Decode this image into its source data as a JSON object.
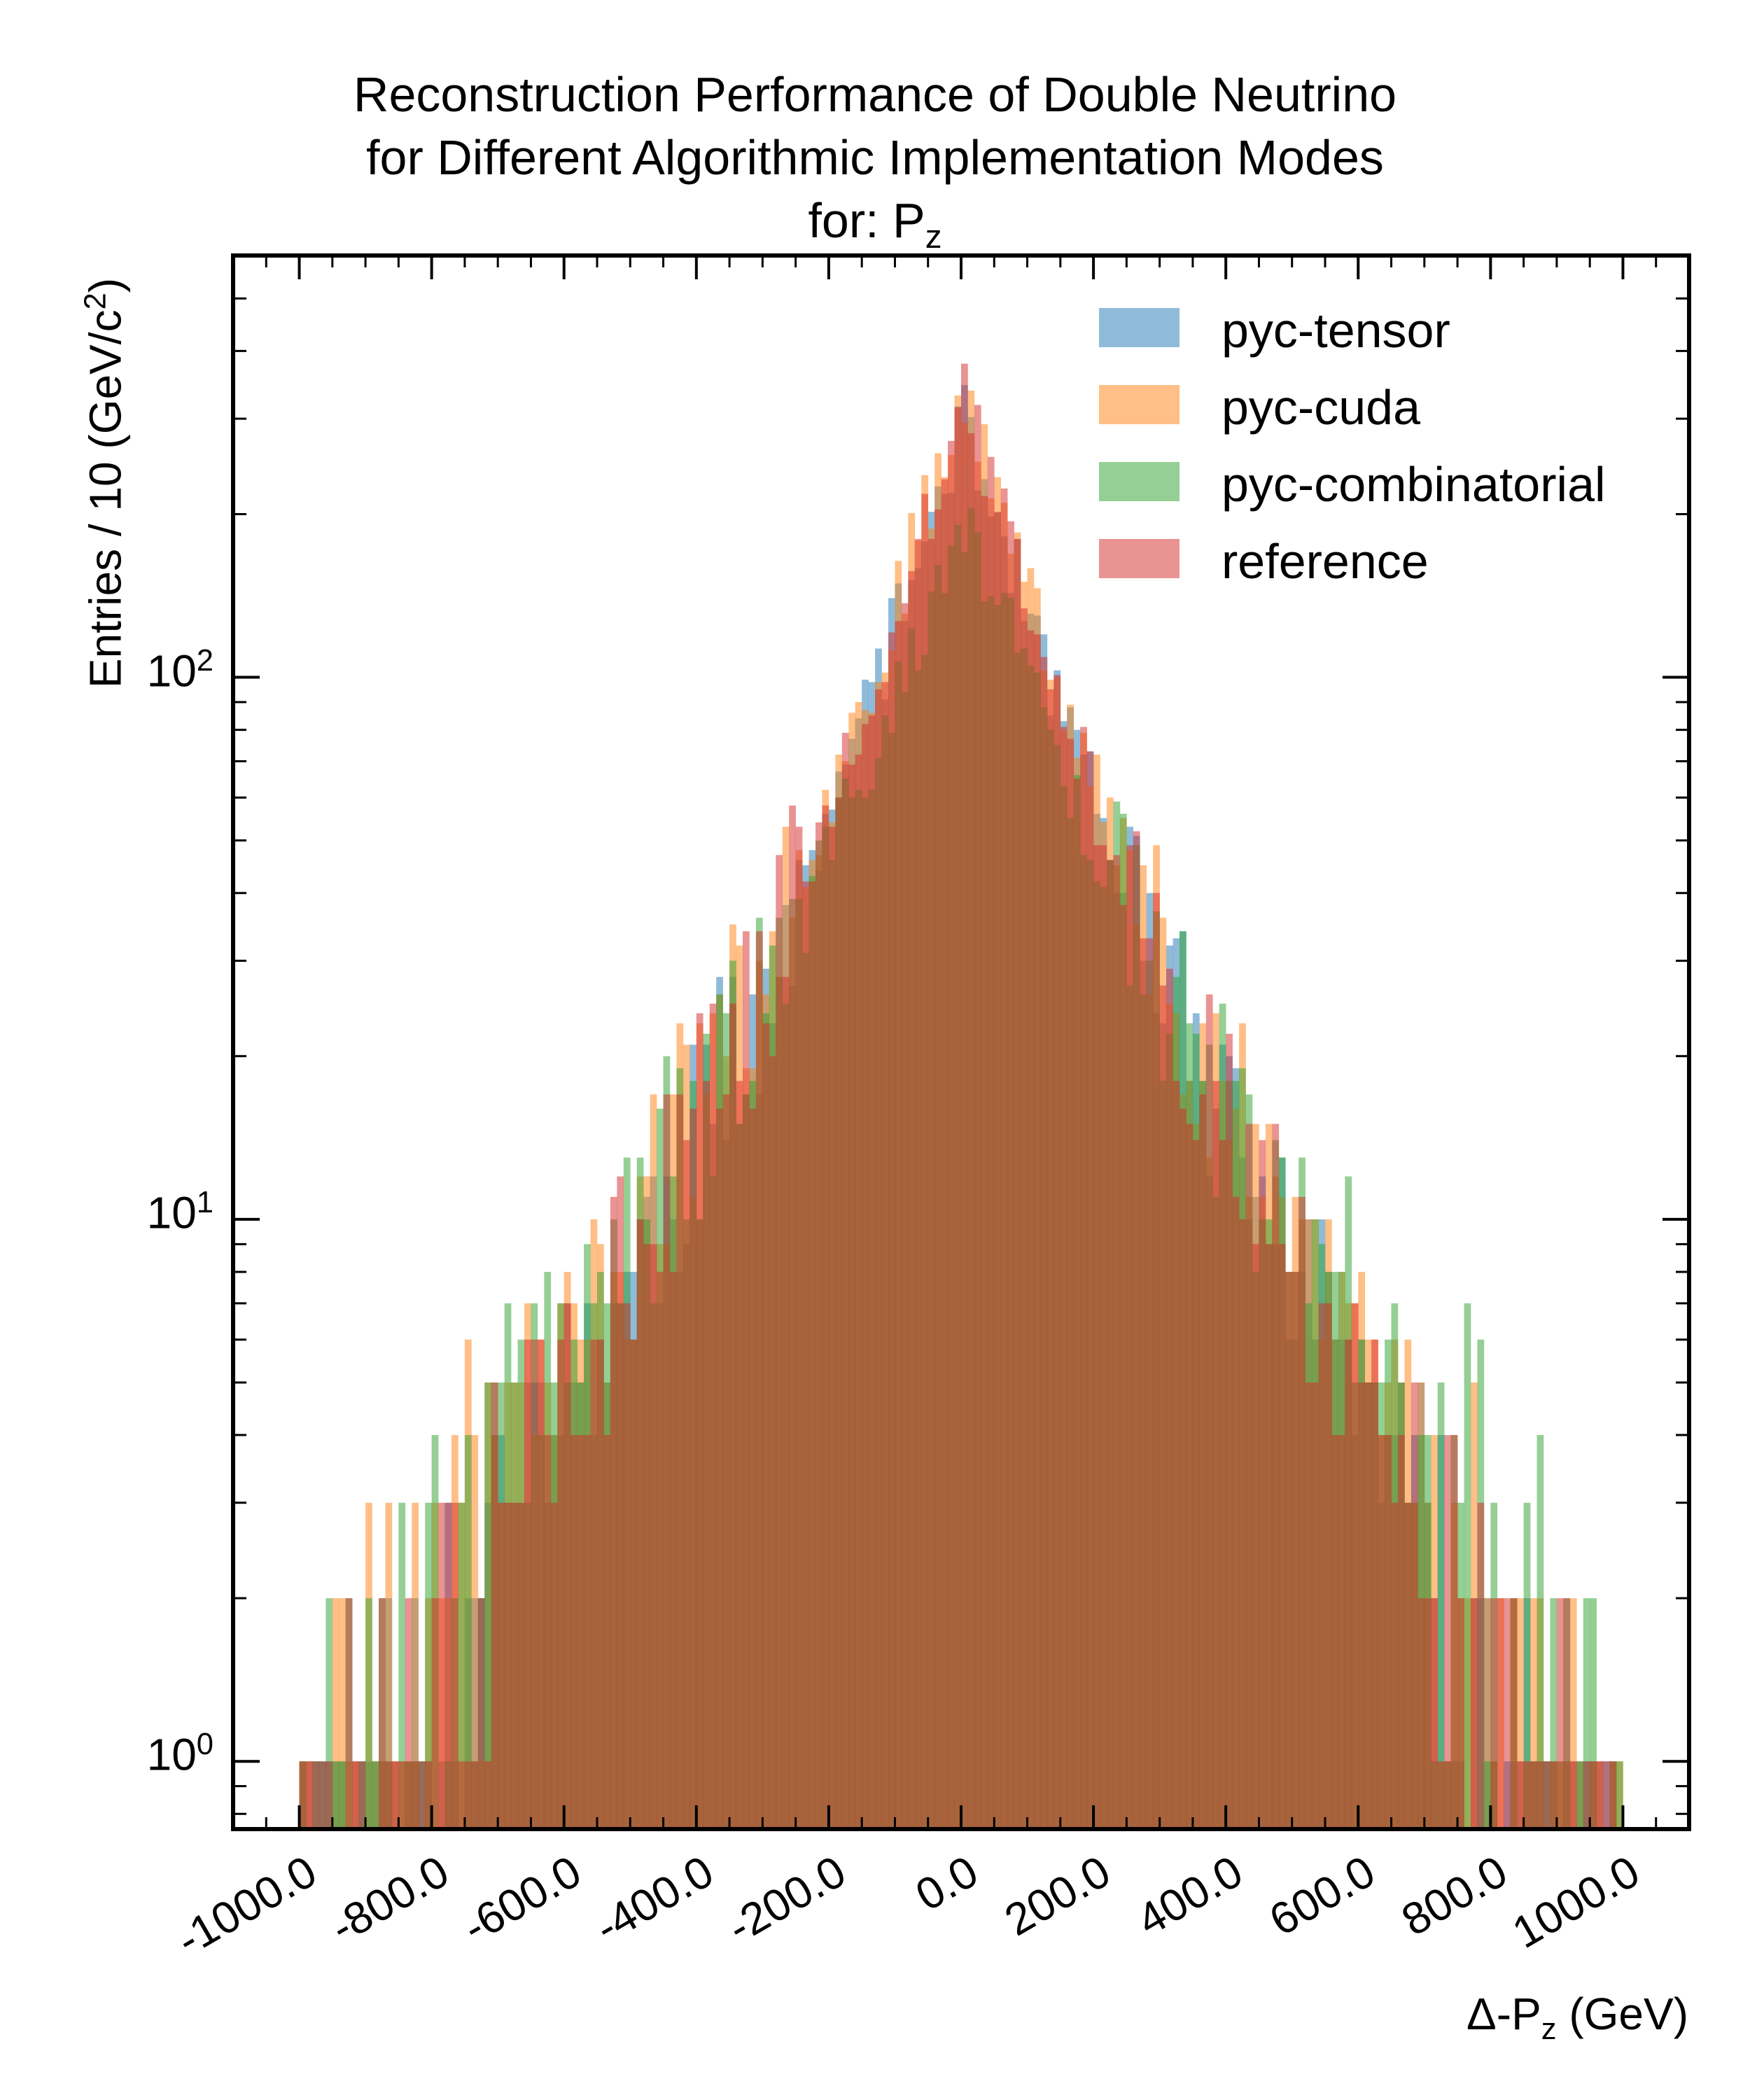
{
  "chart_data": {
    "type": "histogram",
    "title_lines": [
      "Reconstruction Performance of Double Neutrino",
      "for Different Algorithmic Implementation Modes",
      "for: P"
    ],
    "title_sub": "z",
    "ylabel_main": "Entries  / 10 (GeV/c",
    "ylabel_sup": "2",
    "ylabel_end": ")",
    "xlabel_main": "Δ-P",
    "xlabel_sub": "z",
    "xlabel_end": " (GeV)",
    "x_ticks": [
      "-1000.0",
      "-800.0",
      "-600.0",
      "-400.0",
      "-200.0",
      "0.0",
      "200.0",
      "400.0",
      "600.0",
      "800.0",
      "1000.0"
    ],
    "y_ticks": [
      {
        "base": "10",
        "exp": "0"
      },
      {
        "base": "10",
        "exp": "1"
      },
      {
        "base": "10",
        "exp": "2"
      }
    ],
    "xlim": [
      -1100,
      1100
    ],
    "ylim": [
      0.75,
      600
    ],
    "y_scale": "log",
    "bin_width": 10,
    "x_range": [
      -1000,
      1000
    ],
    "legend_position": "top-right",
    "series": [
      {
        "name": "pyc-tensor",
        "color": "#1f77b4",
        "peak": 310,
        "slope_near": 0.0105,
        "slope_far": 0.0046,
        "floor_tail": 0.6,
        "seed": 11
      },
      {
        "name": "pyc-cuda",
        "color": "#ff7f0e",
        "peak": 350,
        "slope_near": 0.0108,
        "slope_far": 0.0044,
        "floor_tail": 0.7,
        "seed": 23
      },
      {
        "name": "pyc-combinatorial",
        "color": "#2ca02c",
        "peak": 200,
        "slope_near": 0.0088,
        "slope_far": 0.0036,
        "floor_tail": 1.0,
        "seed": 37
      },
      {
        "name": "reference",
        "color": "#d62728",
        "peak": 340,
        "slope_near": 0.0112,
        "slope_far": 0.0046,
        "floor_tail": 0.6,
        "seed": 51
      }
    ]
  }
}
